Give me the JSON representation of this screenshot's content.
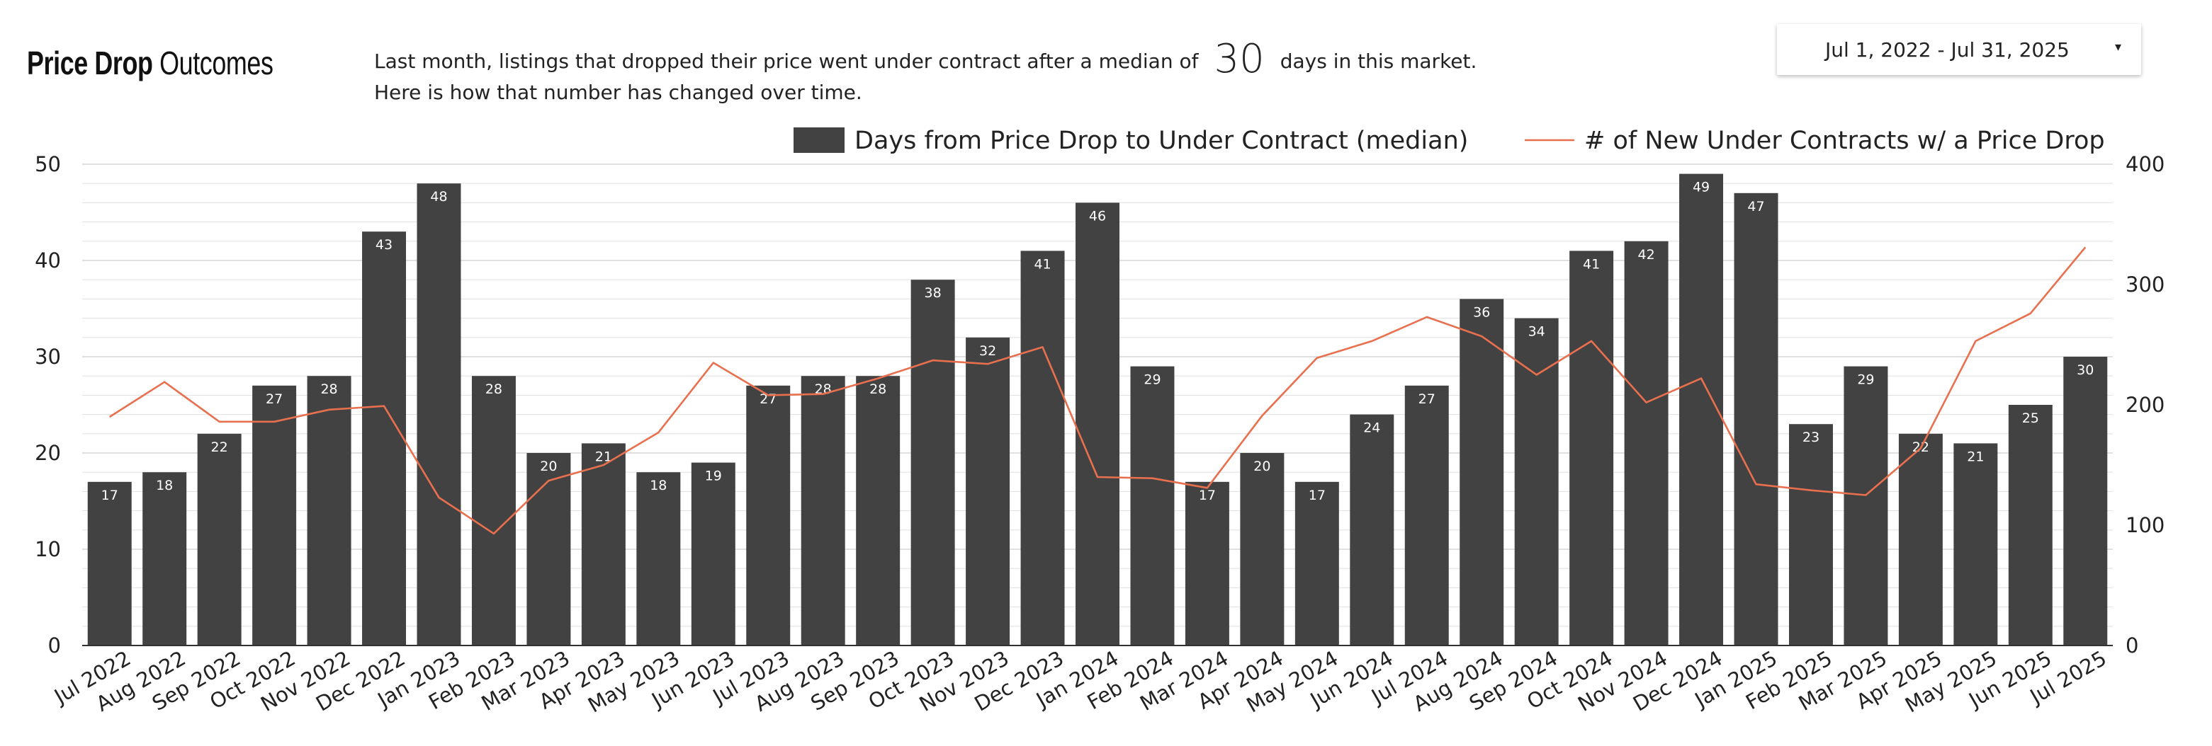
{
  "header": {
    "title_bold": "Price Drop",
    "title_rest": "Outcomes",
    "subtitle_line1_before": "Last month,  listings that dropped their price went under contract after a median of",
    "subtitle_value": "30",
    "subtitle_line1_after": "days in this market.",
    "subtitle_line2": "Here is how that number has changed over time."
  },
  "date_range": {
    "label": "Jul 1, 2022 - Jul 31, 2025",
    "caret": "▾"
  },
  "colors": {
    "bar": "#424242",
    "line": "#E8704F",
    "grid": "#e3e3e3",
    "axis": "#333333"
  },
  "chart_data": {
    "type": "bar",
    "categories": [
      "Jul 2022",
      "Aug 2022",
      "Sep 2022",
      "Oct 2022",
      "Nov 2022",
      "Dec 2022",
      "Jan 2023",
      "Feb 2023",
      "Mar 2023",
      "Apr 2023",
      "May 2023",
      "Jun 2023",
      "Jul 2023",
      "Aug 2023",
      "Sep 2023",
      "Oct 2023",
      "Nov 2023",
      "Dec 2023",
      "Jan 2024",
      "Feb 2024",
      "Mar 2024",
      "Apr 2024",
      "May 2024",
      "Jun 2024",
      "Jul 2024",
      "Aug 2024",
      "Sep 2024",
      "Oct 2024",
      "Nov 2024",
      "Dec 2024",
      "Jan 2025",
      "Feb 2025",
      "Mar 2025",
      "Apr 2025",
      "May 2025",
      "Jun 2025",
      "Jul 2025"
    ],
    "series": [
      {
        "name": "Days from Price Drop to Under Contract (median)",
        "kind": "bar",
        "axis": "left",
        "values": [
          17,
          18,
          22,
          27,
          28,
          43,
          48,
          28,
          20,
          21,
          18,
          19,
          27,
          28,
          28,
          38,
          32,
          41,
          46,
          29,
          17,
          20,
          17,
          24,
          27,
          36,
          34,
          41,
          42,
          49,
          47,
          23,
          29,
          22,
          21,
          25,
          30
        ]
      },
      {
        "name": "# of New Under Contracts w/ a Price Drop",
        "kind": "line",
        "axis": "right",
        "values": [
          190,
          219,
          186,
          186,
          196,
          199,
          123,
          93,
          137,
          150,
          177,
          235,
          208,
          209,
          222,
          237,
          234,
          248,
          140,
          139,
          131,
          191,
          239,
          253,
          273,
          257,
          225,
          253,
          202,
          222,
          134,
          129,
          125,
          164,
          253,
          276,
          331
        ]
      }
    ],
    "y_left": {
      "min": 0,
      "max": 50,
      "ticks": [
        0,
        10,
        20,
        30,
        40,
        50
      ]
    },
    "y_right": {
      "min": 0,
      "max": 400,
      "ticks": [
        0,
        100,
        200,
        300,
        400
      ]
    },
    "legend_position": "top-right",
    "grid": true
  }
}
